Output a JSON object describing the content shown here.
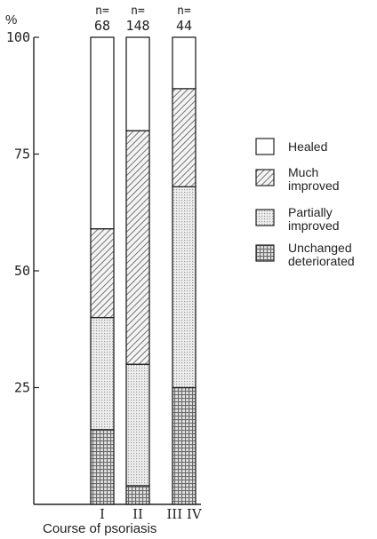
{
  "chart_data": {
    "type": "bar",
    "stacked": true,
    "percent_symbol": "%",
    "xlabel": "Course of psoriasis",
    "ylim": [
      0,
      100
    ],
    "yticks": [
      25,
      50,
      75,
      100
    ],
    "categories": [
      "I",
      "II",
      "III IV"
    ],
    "n_prefix": "n=",
    "n_values": [
      "68",
      "148",
      "44"
    ],
    "series": [
      {
        "name": "Unchanged deteriorated",
        "label_lines": [
          "Unchanged",
          "deteriorated"
        ],
        "pattern": "grid",
        "values": [
          16,
          4,
          25
        ]
      },
      {
        "name": "Partially improved",
        "label_lines": [
          "Partially",
          "improved"
        ],
        "pattern": "dots",
        "values": [
          24,
          26,
          43
        ]
      },
      {
        "name": "Much improved",
        "label_lines": [
          "Much",
          "improved"
        ],
        "pattern": "hatch",
        "values": [
          19,
          50,
          21
        ]
      },
      {
        "name": "Healed",
        "label_lines": [
          "Healed"
        ],
        "pattern": "white",
        "values": [
          41,
          20,
          11
        ]
      }
    ],
    "legend_position": "right",
    "grid": false
  }
}
